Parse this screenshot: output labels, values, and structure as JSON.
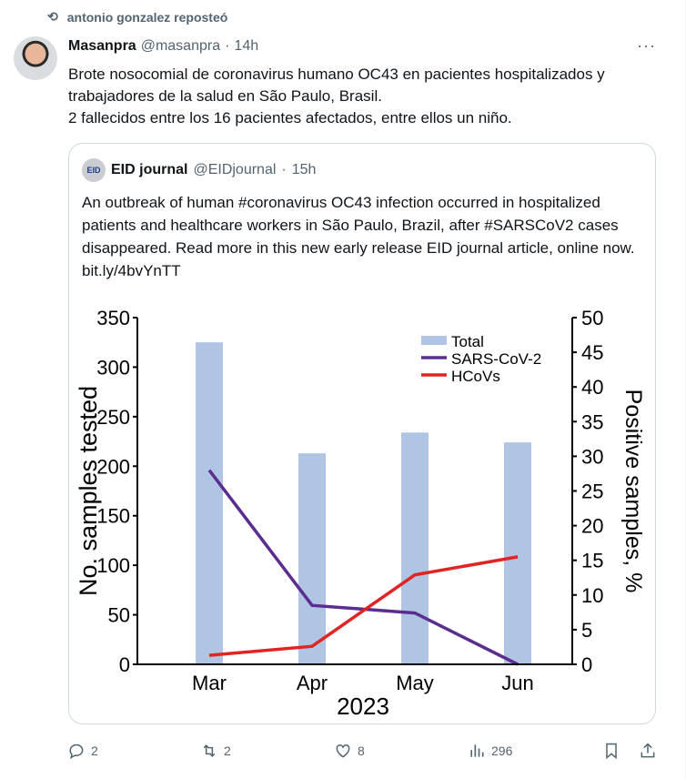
{
  "repost": {
    "label": "antonio gonzalez reposteó"
  },
  "tweet": {
    "name": "Masanpra",
    "handle": "@masanpra",
    "time": "14h",
    "lines": [
      "Brote nosocomial de coronavirus humano OC43 en pacientes hospitalizados y trabajadores de la salud en São Paulo, Brasil.",
      "2 fallecidos entre los 16 pacientes afectados, entre ellos un niño."
    ]
  },
  "quote": {
    "name": "EID journal",
    "handle": "@EIDjournal",
    "time": "15h",
    "avatar_text": "EID",
    "text": "An outbreak of human #coronavirus OC43 infection occurred in hospitalized patients and healthcare workers in São Paulo, Brazil, after #SARSCoV2 cases disappeared. Read more in this new early release EID journal article, online now. bit.ly/4bvYnTT"
  },
  "actions": {
    "replies": "2",
    "reposts": "2",
    "likes": "8",
    "views": "296"
  },
  "chart_data": {
    "type": "bar+line",
    "categories": [
      "Mar",
      "Apr",
      "May",
      "Jun"
    ],
    "xlabel": "2023",
    "ylabel": "No. samples tested",
    "y2label": "Positive samples, %",
    "ylim": [
      0,
      350
    ],
    "yticks": [
      0,
      50,
      100,
      150,
      200,
      250,
      300,
      350
    ],
    "y2lim": [
      0,
      50
    ],
    "y2ticks": [
      0,
      5,
      10,
      15,
      20,
      25,
      30,
      35,
      40,
      45,
      50
    ],
    "series": [
      {
        "name": "Total",
        "type": "bar",
        "axis": "left",
        "color": "#b0c4e4",
        "values": [
          325,
          213,
          234,
          224
        ]
      },
      {
        "name": "SARS-CoV-2",
        "type": "line",
        "axis": "right",
        "color": "#5b2d8e",
        "values": [
          28,
          8.5,
          7.4,
          0
        ]
      },
      {
        "name": "HCoVs",
        "type": "line",
        "axis": "right",
        "color": "#e02424",
        "values": [
          1.3,
          2.6,
          12.9,
          15.5
        ]
      }
    ],
    "legend": "top-right"
  }
}
